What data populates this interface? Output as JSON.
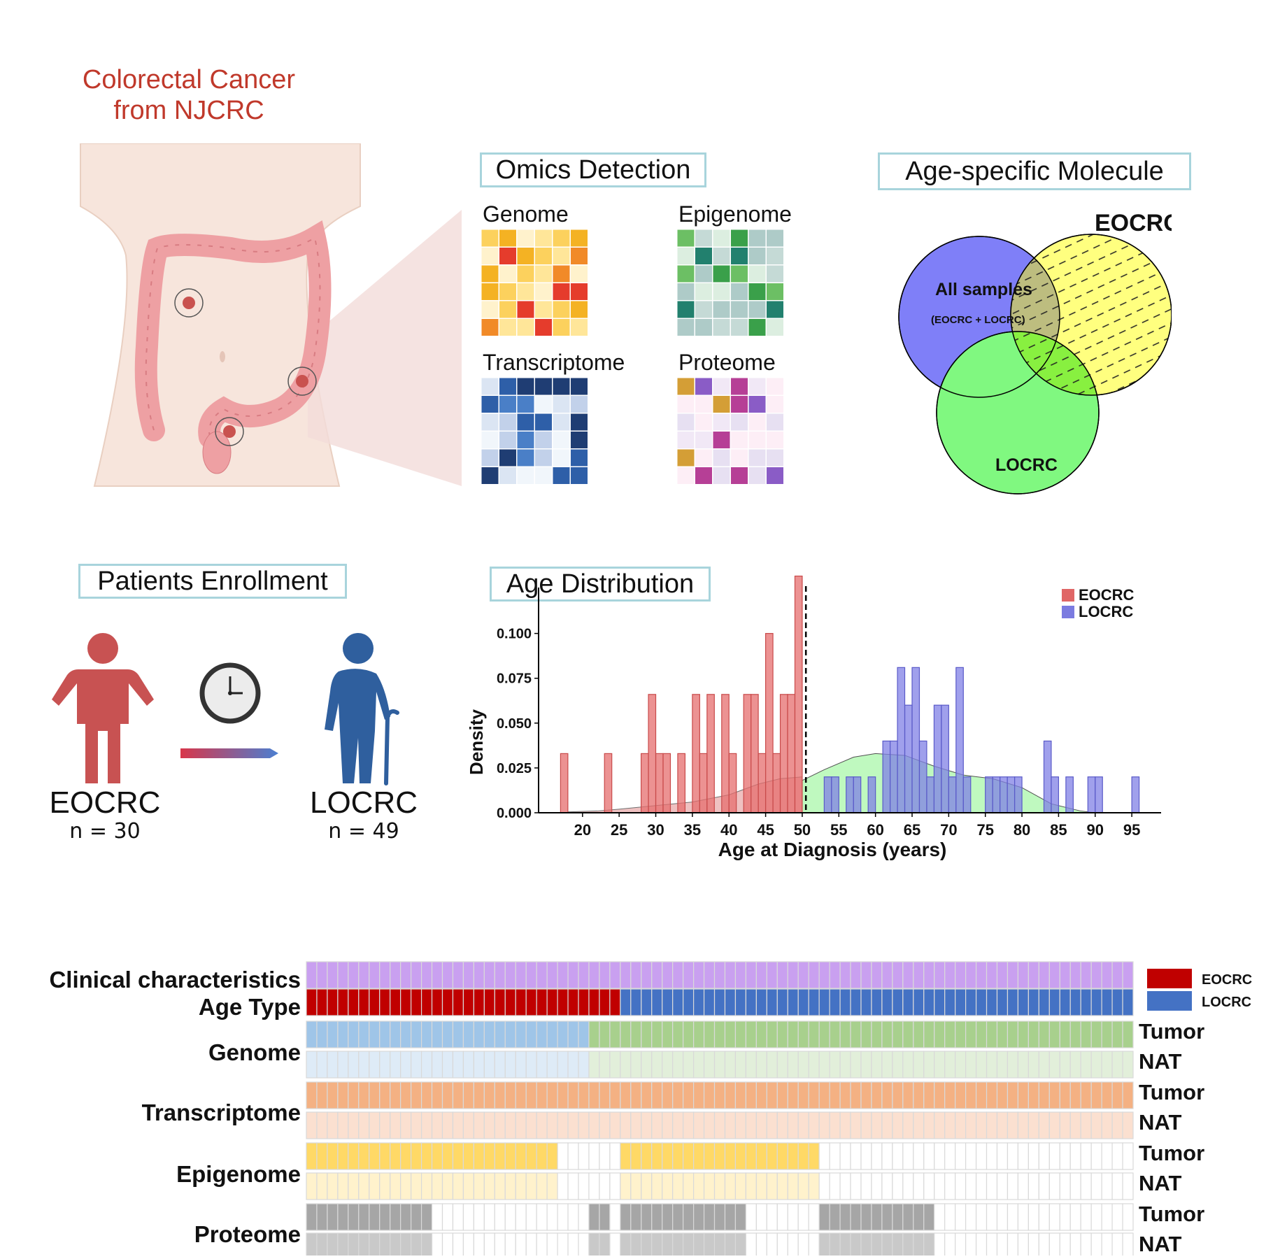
{
  "header": {
    "title_line1": "Colorectal Cancer",
    "title_line2": "from NJCRC",
    "title_color": "#c0392b"
  },
  "omics": {
    "label": "Omics Detection",
    "panels": [
      {
        "name": "Genome"
      },
      {
        "name": "Epigenome"
      },
      {
        "name": "Transcriptome"
      },
      {
        "name": "Proteome"
      }
    ]
  },
  "venn": {
    "label": "Age-specific Molecule",
    "eocrc": "EOCRC",
    "all_samples": "All samples",
    "all_samples_sub": "(EOCRC + LOCRC)",
    "locrc": "LOCRC",
    "colors": {
      "all": "#7f7ff8",
      "eocrc": "#ffff7f",
      "locrc": "#80f880"
    }
  },
  "enrollment": {
    "label": "Patients Enrollment",
    "eocrc": {
      "name": "EOCRC",
      "n": "n = 30",
      "icon": "person-icon",
      "color": "#c85252"
    },
    "locrc": {
      "name": "LOCRC",
      "n": "n = 49",
      "icon": "elderly-person-icon",
      "color": "#2f5f9e"
    },
    "clock_icon": "clock-icon"
  },
  "age_distribution": {
    "label": "Age Distribution"
  },
  "chart_data": {
    "type": "bar",
    "xlabel": "Age at Diagnosis (years)",
    "ylabel": "Density",
    "xlim": [
      14,
      99
    ],
    "ylim": [
      0,
      0.11
    ],
    "xticks": [
      20,
      25,
      30,
      35,
      40,
      45,
      50,
      55,
      60,
      65,
      70,
      75,
      80,
      85,
      90,
      95
    ],
    "yticks": [
      "0.000",
      "0.025",
      "0.050",
      "0.075",
      "0.100"
    ],
    "cutoff": 50,
    "legend": [
      {
        "name": "EOCRC",
        "color": "#e06666"
      },
      {
        "name": "LOCRC",
        "color": "#7b7be0"
      }
    ],
    "legend_position": "top-right",
    "bin_width": 1,
    "series": [
      {
        "name": "EOCRC",
        "color": "#e06666",
        "bins": [
          [
            17,
            0.033
          ],
          [
            23,
            0.033
          ],
          [
            28,
            0.033
          ],
          [
            29,
            0.066
          ],
          [
            30,
            0.033
          ],
          [
            31,
            0.033
          ],
          [
            33,
            0.033
          ],
          [
            35,
            0.066
          ],
          [
            36,
            0.033
          ],
          [
            37,
            0.066
          ],
          [
            39,
            0.066
          ],
          [
            40,
            0.033
          ],
          [
            42,
            0.066
          ],
          [
            43,
            0.066
          ],
          [
            44,
            0.033
          ],
          [
            45,
            0.1
          ],
          [
            46,
            0.033
          ],
          [
            47,
            0.066
          ],
          [
            48,
            0.066
          ],
          [
            49,
            0.132
          ]
        ]
      },
      {
        "name": "LOCRC",
        "color": "#7b7be0",
        "bins": [
          [
            53,
            0.02
          ],
          [
            54,
            0.02
          ],
          [
            56,
            0.02
          ],
          [
            57,
            0.02
          ],
          [
            59,
            0.02
          ],
          [
            61,
            0.04
          ],
          [
            62,
            0.04
          ],
          [
            63,
            0.081
          ],
          [
            64,
            0.06
          ],
          [
            65,
            0.081
          ],
          [
            66,
            0.04
          ],
          [
            67,
            0.02
          ],
          [
            68,
            0.06
          ],
          [
            69,
            0.06
          ],
          [
            70,
            0.02
          ],
          [
            71,
            0.081
          ],
          [
            72,
            0.02
          ],
          [
            75,
            0.02
          ],
          [
            76,
            0.02
          ],
          [
            77,
            0.02
          ],
          [
            78,
            0.02
          ],
          [
            79,
            0.02
          ],
          [
            83,
            0.04
          ],
          [
            84,
            0.02
          ],
          [
            86,
            0.02
          ],
          [
            89,
            0.02
          ],
          [
            90,
            0.02
          ],
          [
            95,
            0.02
          ]
        ]
      }
    ],
    "density_curves": [
      {
        "name": "EOCRC",
        "color": "#d77f7f",
        "points": [
          [
            18,
            0.0005
          ],
          [
            22,
            0.001
          ],
          [
            25,
            0.002
          ],
          [
            30,
            0.004
          ],
          [
            35,
            0.006
          ],
          [
            40,
            0.01
          ],
          [
            44,
            0.016
          ],
          [
            47,
            0.019
          ],
          [
            50,
            0.02
          ]
        ]
      },
      {
        "name": "LOCRC",
        "color": "#8ff48f",
        "points": [
          [
            50,
            0.018
          ],
          [
            53,
            0.024
          ],
          [
            57,
            0.031
          ],
          [
            60,
            0.033
          ],
          [
            64,
            0.032
          ],
          [
            68,
            0.026
          ],
          [
            72,
            0.021
          ],
          [
            76,
            0.019
          ],
          [
            80,
            0.014
          ],
          [
            84,
            0.005
          ],
          [
            88,
            0.001
          ],
          [
            90,
            0.0
          ]
        ]
      }
    ]
  },
  "heatmap": {
    "rows": [
      {
        "label": "Clinical characteristics",
        "side": ""
      },
      {
        "label": "Age Type",
        "side": ""
      },
      {
        "label": "Genome",
        "side": "Tumor"
      },
      {
        "label": "",
        "side": "NAT"
      },
      {
        "label": "Transcriptome",
        "side": "Tumor"
      },
      {
        "label": "",
        "side": "NAT"
      },
      {
        "label": "Epigenome",
        "side": "Tumor"
      },
      {
        "label": "",
        "side": "NAT"
      },
      {
        "label": "Proteome",
        "side": "Tumor"
      },
      {
        "label": "",
        "side": "NAT"
      }
    ],
    "legend": [
      {
        "name": "EOCRC",
        "color": "#c00000"
      },
      {
        "name": "LOCRC",
        "color": "#4472c4"
      }
    ],
    "columns": 79
  }
}
